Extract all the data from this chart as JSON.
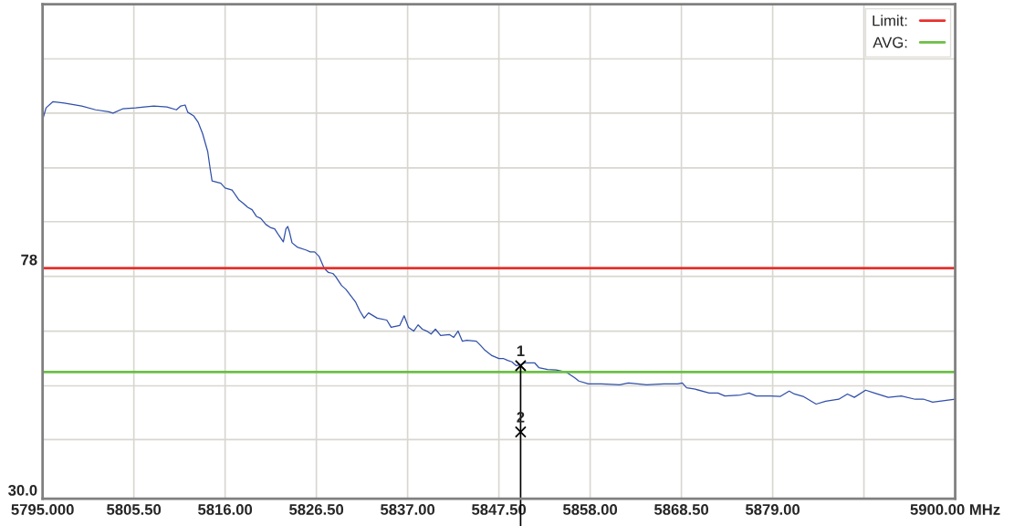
{
  "chart_data": {
    "type": "line",
    "x": [
      5795.0,
      5795.4,
      5796.2,
      5797.5,
      5799.5,
      5801.1,
      5802.6,
      5803.1,
      5804.2,
      5805.7,
      5806.7,
      5807.8,
      5809.3,
      5810.4,
      5810.9,
      5811.4,
      5811.7,
      5812.4,
      5812.9,
      5813.4,
      5814.0,
      5814.3,
      5814.5,
      5815.5,
      5816.0,
      5816.8,
      5817.6,
      5818.1,
      5818.6,
      5819.1,
      5819.6,
      5820.1,
      5820.7,
      5821.2,
      5821.7,
      5822.2,
      5822.7,
      5823.0,
      5823.2,
      5823.4,
      5823.7,
      5824.3,
      5825.3,
      5825.8,
      5826.3,
      5826.8,
      5827.4,
      5827.9,
      5828.4,
      5828.7,
      5829.4,
      5829.9,
      5831.0,
      5831.5,
      5832.0,
      5832.5,
      5833.5,
      5834.6,
      5835.1,
      5835.6,
      5836.1,
      5836.6,
      5837.1,
      5837.7,
      5838.2,
      5838.7,
      5839.2,
      5839.7,
      5840.2,
      5840.8,
      5841.8,
      5842.3,
      5842.8,
      5843.3,
      5843.8,
      5844.9,
      5845.4,
      5845.9,
      5846.7,
      5847.5,
      5848.0,
      5848.5,
      5849.0,
      5849.5,
      5850.0,
      5850.5,
      5851.6,
      5852.1,
      5853.1,
      5854.1,
      5855.2,
      5856.2,
      5856.7,
      5857.8,
      5859.3,
      5861.4,
      5862.4,
      5864.5,
      5866.5,
      5868.1,
      5868.6,
      5869.1,
      5870.1,
      5871.7,
      5872.7,
      5873.5,
      5875.3,
      5876.3,
      5877.1,
      5878.8,
      5879.9,
      5880.9,
      5881.5,
      5882.5,
      5884.0,
      5885.1,
      5886.6,
      5887.6,
      5888.4,
      5889.7,
      5890.7,
      5892.3,
      5893.8,
      5895.4,
      5896.4,
      5897.4,
      5900.0
    ],
    "series": [
      {
        "color": "#2f4fa8",
        "values": [
          108.9,
          111.4,
          112.7,
          112.4,
          111.8,
          111.0,
          110.6,
          110.3,
          111.2,
          111.4,
          111.6,
          111.8,
          111.6,
          111.0,
          111.8,
          112.0,
          110.5,
          109.7,
          108.4,
          106.1,
          102.3,
          98.5,
          96.2,
          95.7,
          94.7,
          94.3,
          92.2,
          91.5,
          90.7,
          90.2,
          88.8,
          88.4,
          87.1,
          86.5,
          86.2,
          84.8,
          83.5,
          86.2,
          86.7,
          85.6,
          83.3,
          82.4,
          81.8,
          81.4,
          81.4,
          80.5,
          78.0,
          77.1,
          76.9,
          76.3,
          74.4,
          73.6,
          71.0,
          69.1,
          67.6,
          68.7,
          67.6,
          67.2,
          65.7,
          65.9,
          66.1,
          68.1,
          65.7,
          64.9,
          66.2,
          65.3,
          64.9,
          64.3,
          65.3,
          64.0,
          64.2,
          63.6,
          64.9,
          62.8,
          63.0,
          62.8,
          61.9,
          60.9,
          59.8,
          59.2,
          59.2,
          58.8,
          58.5,
          57.7,
          57.9,
          58.3,
          58.3,
          57.3,
          56.9,
          56.8,
          56.4,
          55.2,
          54.5,
          53.9,
          53.9,
          53.7,
          54.1,
          53.7,
          53.9,
          53.9,
          54.1,
          53.1,
          52.8,
          52.0,
          52.0,
          51.4,
          51.6,
          52.0,
          51.4,
          51.4,
          51.3,
          52.4,
          51.8,
          51.3,
          49.7,
          50.3,
          50.7,
          51.8,
          51.1,
          52.6,
          52.0,
          51.1,
          51.4,
          50.7,
          50.7,
          50.1,
          50.7
        ]
      }
    ],
    "xlim": [
      5795,
      5900
    ],
    "xticks": [
      {
        "value": 5795,
        "label": "5795.000"
      },
      {
        "value": 5805.5,
        "label": "5805.50"
      },
      {
        "value": 5816,
        "label": "5816.00"
      },
      {
        "value": 5826.5,
        "label": "5826.50"
      },
      {
        "value": 5837,
        "label": "5837.00"
      },
      {
        "value": 5847.5,
        "label": "5847.50"
      },
      {
        "value": 5858,
        "label": "5858.00"
      },
      {
        "value": 5868.5,
        "label": "5868.50"
      },
      {
        "value": 5879,
        "label": "5879.00"
      },
      {
        "value": 5889.5,
        "label": null
      },
      {
        "value": 5900,
        "label": "5900.00 MHz"
      }
    ],
    "ylim": [
      30,
      133
    ],
    "yticks": [
      {
        "value": 30,
        "label": "30.0"
      },
      {
        "value": 42.3,
        "label": null
      },
      {
        "value": 53.5,
        "label": null
      },
      {
        "value": 64.9,
        "label": null
      },
      {
        "value": 76.3,
        "label": null
      },
      78,
      {
        "value": 87.7,
        "label": null
      },
      {
        "value": 98.9,
        "label": null
      },
      {
        "value": 110.3,
        "label": null
      },
      {
        "value": 121.6,
        "label": null
      }
    ],
    "grid": true,
    "ref_lines": [
      {
        "axis": "y",
        "value": 78,
        "label": "Limit:",
        "color": "#e8302c"
      },
      {
        "axis": "y",
        "value": 56.4,
        "label": "AVG:",
        "color": "#6cbf45"
      },
      {
        "axis": "x",
        "value": 5850.0,
        "color": "#000000"
      }
    ],
    "annotations": [
      {
        "text": "1",
        "x": 5850.0,
        "y": 57.7
      },
      {
        "text": "2",
        "x": 5850.0,
        "y": 43.9
      }
    ],
    "legend": "top right",
    "marker": "none"
  }
}
